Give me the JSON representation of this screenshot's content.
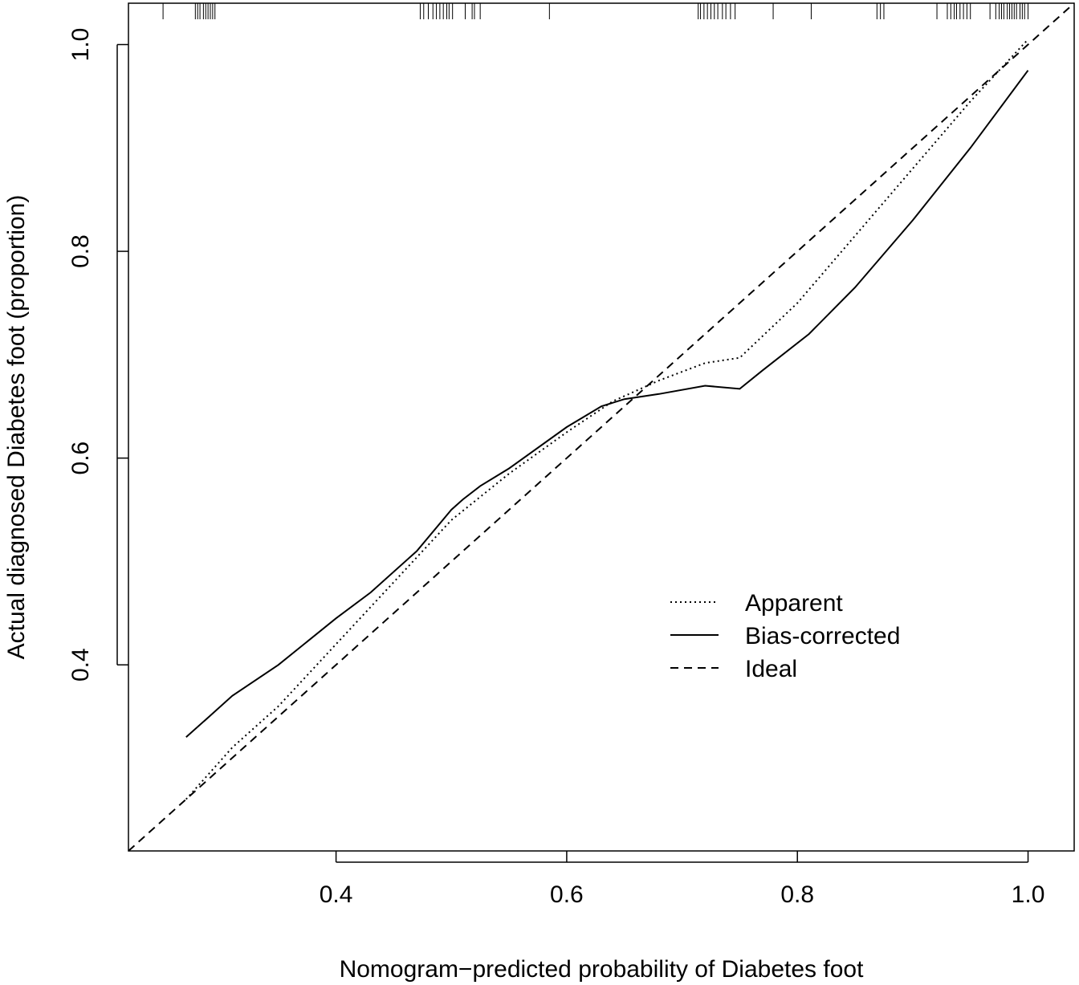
{
  "chart_data": {
    "type": "line",
    "title": "",
    "xlabel": "Nomogram−predicted probability of Diabetes foot",
    "ylabel": "Actual diagnosed Diabetes foot (proportion)",
    "xlim": [
      0.22,
      1.04
    ],
    "ylim": [
      0.22,
      1.04
    ],
    "x_ticks": [
      0.4,
      0.6,
      0.8,
      1.0
    ],
    "x_tick_labels": [
      "0.4",
      "0.6",
      "0.8",
      "1.0"
    ],
    "y_ticks": [
      0.4,
      0.6,
      0.8,
      1.0
    ],
    "y_tick_labels": [
      "0.4",
      "0.6",
      "0.8",
      "1.0"
    ],
    "grid": false,
    "legend_position": "lower-right",
    "series": [
      {
        "name": "Apparent",
        "style": "dotted",
        "x": [
          0.27,
          0.29,
          0.31,
          0.35,
          0.4,
          0.45,
          0.5,
          0.55,
          0.6,
          0.64,
          0.68,
          0.72,
          0.75,
          0.8,
          0.85,
          0.9,
          0.95,
          1.0
        ],
        "y": [
          0.27,
          0.295,
          0.32,
          0.36,
          0.42,
          0.48,
          0.54,
          0.585,
          0.625,
          0.655,
          0.675,
          0.692,
          0.697,
          0.75,
          0.815,
          0.88,
          0.945,
          1.005
        ]
      },
      {
        "name": "Bias-corrected",
        "style": "solid",
        "x": [
          0.27,
          0.29,
          0.31,
          0.35,
          0.4,
          0.43,
          0.47,
          0.5,
          0.51,
          0.525,
          0.55,
          0.6,
          0.63,
          0.65,
          0.68,
          0.72,
          0.75,
          0.77,
          0.81,
          0.85,
          0.9,
          0.95,
          1.0
        ],
        "y": [
          0.33,
          0.35,
          0.37,
          0.4,
          0.445,
          0.47,
          0.51,
          0.55,
          0.56,
          0.573,
          0.59,
          0.63,
          0.65,
          0.657,
          0.662,
          0.67,
          0.667,
          0.685,
          0.72,
          0.765,
          0.83,
          0.9,
          0.975
        ]
      },
      {
        "name": "Ideal",
        "style": "dashed",
        "x": [
          0.22,
          1.04
        ],
        "y": [
          0.22,
          1.04
        ]
      }
    ],
    "rug_x": [
      0.25,
      0.278,
      0.28,
      0.282,
      0.285,
      0.287,
      0.289,
      0.291,
      0.293,
      0.295,
      0.473,
      0.476,
      0.48,
      0.484,
      0.487,
      0.49,
      0.493,
      0.496,
      0.498,
      0.501,
      0.512,
      0.518,
      0.52,
      0.525,
      0.585,
      0.714,
      0.716,
      0.719,
      0.722,
      0.725,
      0.728,
      0.731,
      0.735,
      0.738,
      0.742,
      0.746,
      0.779,
      0.812,
      0.869,
      0.872,
      0.875,
      0.921,
      0.93,
      0.933,
      0.936,
      0.938,
      0.941,
      0.944,
      0.947,
      0.95,
      0.967,
      0.972,
      0.975,
      0.977,
      0.979,
      0.982,
      0.984,
      0.986,
      0.988,
      0.99,
      0.993,
      0.995,
      0.997,
      1.0
    ]
  }
}
